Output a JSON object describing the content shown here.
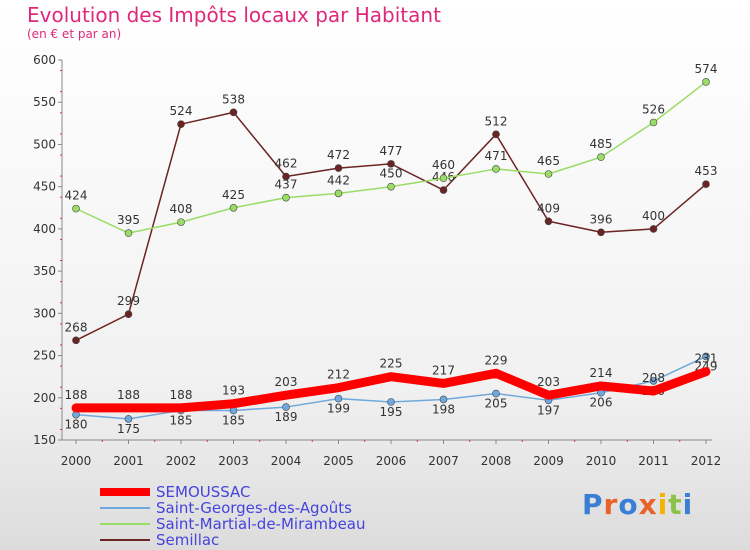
{
  "title": "Evolution des Impôts locaux par Habitant",
  "subtitle": "(en € et par an)",
  "chart_data": {
    "type": "line",
    "x": [
      "2000",
      "2001",
      "2002",
      "2003",
      "2004",
      "2005",
      "2006",
      "2007",
      "2008",
      "2009",
      "2010",
      "2011",
      "2012"
    ],
    "ylim": [
      150,
      600
    ],
    "yticks": [
      150,
      200,
      250,
      300,
      350,
      400,
      450,
      500,
      550,
      600
    ],
    "grid": false,
    "legend_position": "bottom-left",
    "series": [
      {
        "name": "SEMOUSSAC",
        "color": "#ff0000",
        "values": [
          188,
          188,
          188,
          193,
          203,
          212,
          225,
          217,
          229,
          203,
          214,
          208,
          231
        ]
      },
      {
        "name": "Saint-Georges-des-Agoûts",
        "color": "#6fa8dc",
        "values": [
          180,
          175,
          185,
          185,
          189,
          199,
          195,
          198,
          205,
          197,
          206,
          220,
          249
        ]
      },
      {
        "name": "Saint-Martial-de-Mirambeau",
        "color": "#99dd66",
        "values": [
          424,
          395,
          408,
          425,
          437,
          442,
          450,
          460,
          471,
          465,
          485,
          526,
          574
        ]
      },
      {
        "name": "Semillac",
        "color": "#6b2424",
        "values": [
          268,
          299,
          524,
          538,
          462,
          472,
          477,
          446,
          512,
          409,
          396,
          400,
          453
        ]
      }
    ]
  },
  "logo": {
    "text": "Proxiti"
  },
  "colors": {
    "title": "#e0287a",
    "legend_text": "#4444dd",
    "axis": "#888888"
  }
}
